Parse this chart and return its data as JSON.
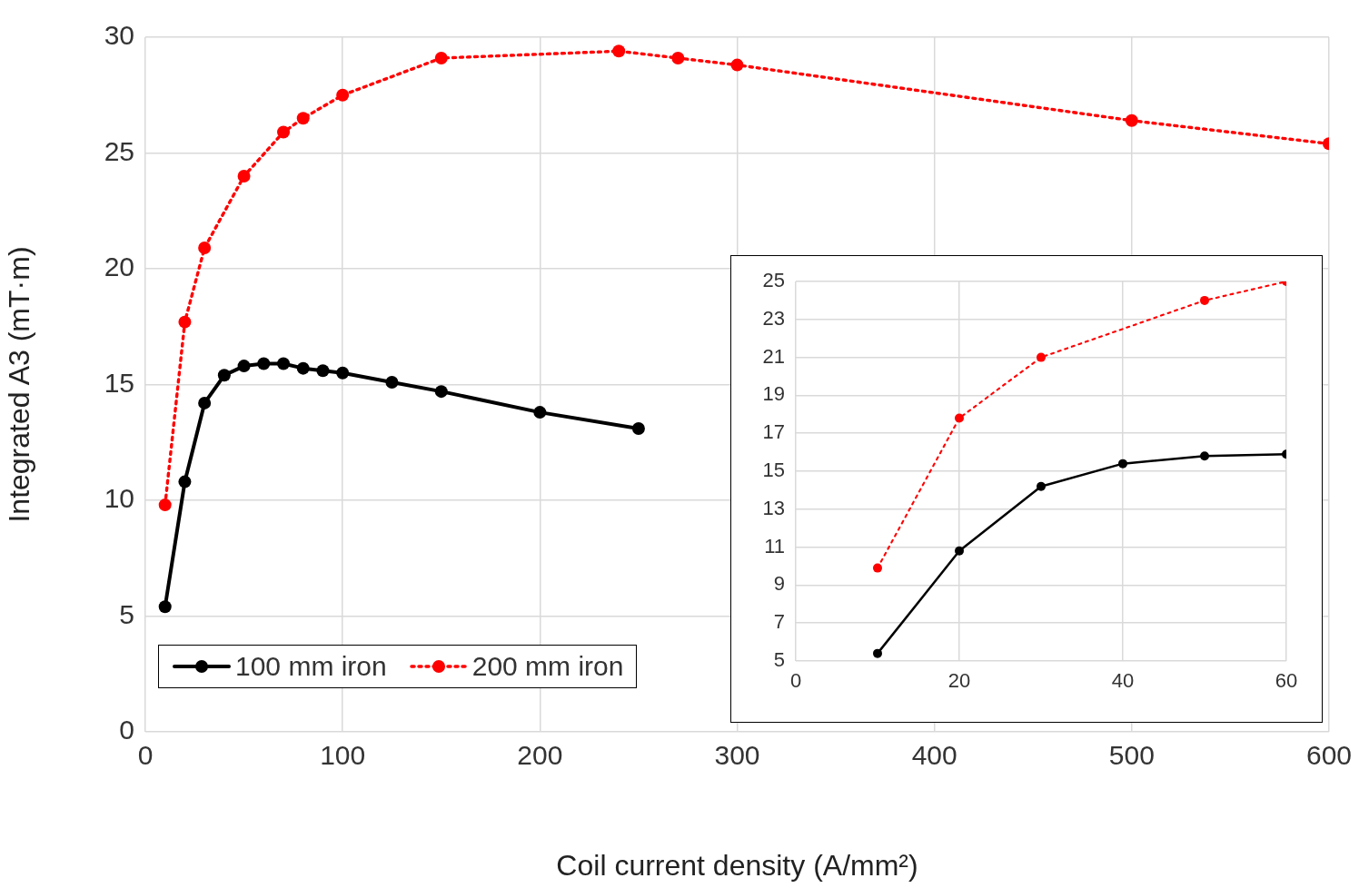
{
  "chart_data": [
    {
      "type": "line",
      "xlabel": "Coil current density (A/mm²)",
      "ylabel": "Integrated A3 (mT·m)",
      "xlim": [
        0,
        600
      ],
      "xticks": [
        0,
        100,
        200,
        300,
        400,
        500,
        600
      ],
      "ylim": [
        0,
        30
      ],
      "yticks": [
        0,
        5,
        10,
        15,
        20,
        25,
        30
      ],
      "grid": true,
      "legend": "bottom left",
      "marker": "circle",
      "series": [
        {
          "name": "100 mm iron",
          "color": "#000000",
          "line_style": "solid",
          "x": [
            10,
            20,
            30,
            40,
            50,
            60,
            70,
            80,
            90,
            100,
            125,
            150,
            200,
            250
          ],
          "values": [
            5.4,
            10.8,
            14.2,
            15.4,
            15.8,
            15.9,
            15.9,
            15.7,
            15.6,
            15.5,
            15.1,
            14.7,
            13.8,
            13.1
          ]
        },
        {
          "name": "200 mm iron",
          "color": "#ff0000",
          "line_style": "dotted",
          "x": [
            10,
            20,
            30,
            50,
            70,
            80,
            100,
            150,
            240,
            270,
            300,
            500,
            600
          ],
          "values": [
            9.8,
            17.7,
            20.9,
            24.0,
            25.9,
            26.5,
            27.5,
            29.1,
            29.4,
            29.1,
            28.8,
            26.4,
            25.4
          ]
        }
      ]
    },
    {
      "type": "line",
      "xlim": [
        0,
        60
      ],
      "xticks": [
        0,
        20,
        40,
        60
      ],
      "ylim": [
        5,
        25
      ],
      "yticks": [
        5,
        7,
        9,
        11,
        13,
        15,
        17,
        19,
        21,
        23,
        25
      ],
      "grid": true,
      "marker": "circle",
      "series": [
        {
          "color": "#000000",
          "line_style": "solid",
          "x": [
            10,
            20,
            30,
            40,
            50,
            60
          ],
          "values": [
            5.4,
            10.8,
            14.2,
            15.4,
            15.8,
            15.9
          ]
        },
        {
          "color": "#ff0000",
          "line_style": "dotted",
          "x": [
            10,
            20,
            30,
            50,
            60
          ],
          "values": [
            9.9,
            17.8,
            21.0,
            24.0,
            25.0
          ]
        }
      ]
    }
  ]
}
